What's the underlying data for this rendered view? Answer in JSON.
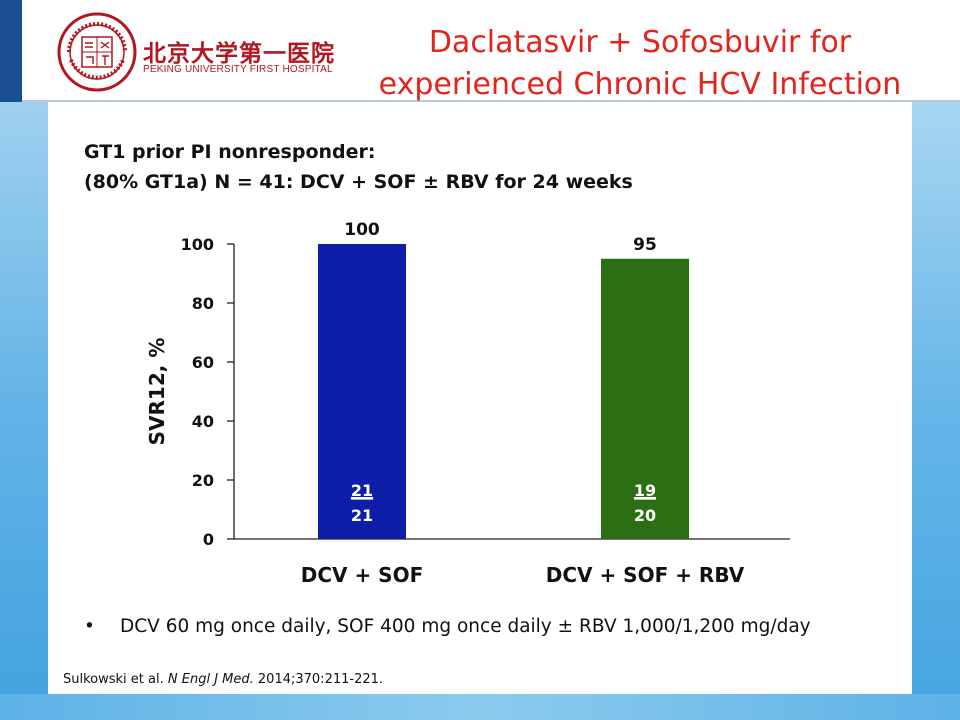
{
  "header": {
    "logo_chinese": "北京大学第一医院",
    "logo_english": "PEKING UNIVERSITY FIRST HOSPITAL",
    "title_line1": "Daclatasvir + Sofosbuvir for",
    "title_line2": "experienced Chronic HCV Infection",
    "title_color": "#e2241d",
    "logo_color": "#b0171f"
  },
  "subtitle": {
    "line1": "GT1 prior PI nonresponder:",
    "line2": "(80% GT1a) N = 41: DCV + SOF ± RBV for 24 weeks"
  },
  "chart_data": {
    "type": "bar",
    "categories": [
      "DCV + SOF",
      "DCV + SOF + RBV"
    ],
    "values": [
      100,
      95
    ],
    "value_labels": [
      "100",
      "95"
    ],
    "fractions": [
      {
        "numerator": "21",
        "denominator": "21"
      },
      {
        "numerator": "19",
        "denominator": "20"
      }
    ],
    "bar_colors": [
      "#0f1ea8",
      "#2b6e14"
    ],
    "ylabel": "SVR12, %",
    "xlabel": "",
    "ylim": [
      0,
      100
    ],
    "yticks": [
      0,
      20,
      40,
      60,
      80,
      100
    ],
    "grid": false,
    "legend": "none"
  },
  "footer": {
    "bullet_symbol": "•",
    "bullet_text": "DCV 60 mg once daily, SOF 400 mg once daily ± RBV 1,000/1,200 mg/day",
    "citation_authors": "Sulkowski et al.",
    "citation_journal": "N Engl J Med.",
    "citation_details": "2014;370:211-221."
  }
}
